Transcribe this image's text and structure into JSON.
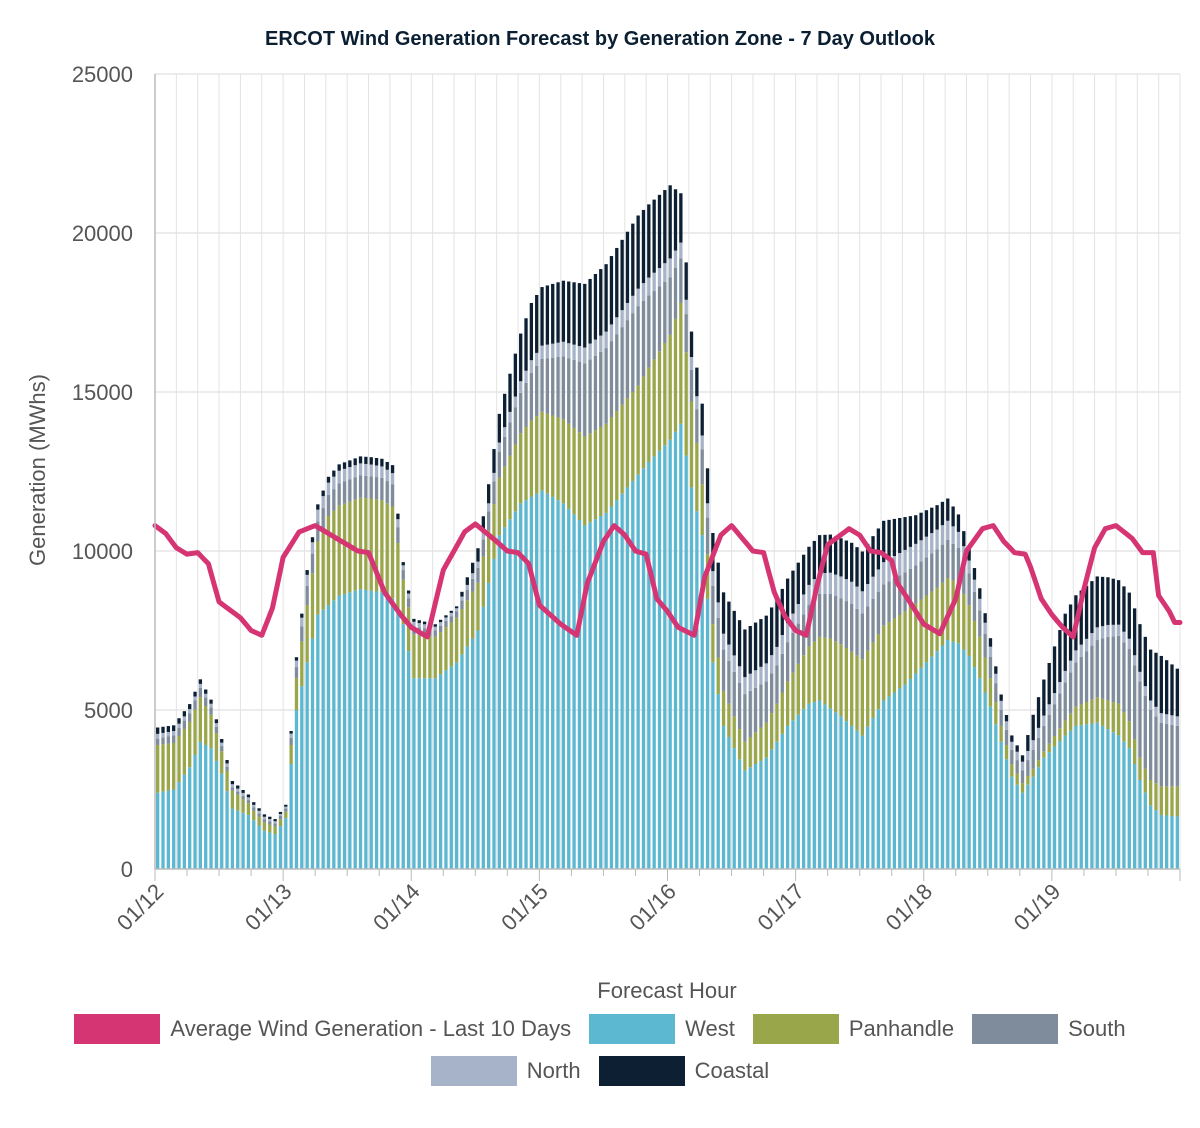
{
  "chart_data": {
    "type": "bar",
    "stacked": true,
    "title": "ERCOT Wind Generation Forecast by Generation Zone - 7 Day Outlook",
    "xlabel": "Forecast Hour",
    "ylabel": "Generation (MWhs)",
    "ylim": [
      0,
      25000
    ],
    "yticks": [
      0,
      5000,
      10000,
      15000,
      20000,
      25000
    ],
    "xticks": [
      "01/12",
      "01/13",
      "01/14",
      "01/15",
      "01/16",
      "01/17",
      "01/18",
      "01/19"
    ],
    "hours": 192,
    "grid": true,
    "legend_position": "bottom",
    "series": [
      {
        "name": "West",
        "color": "#5bb8d0",
        "anchors": [
          [
            0,
            2400
          ],
          [
            3,
            2500
          ],
          [
            6,
            3200
          ],
          [
            8,
            4000
          ],
          [
            10,
            3800
          ],
          [
            12,
            3000
          ],
          [
            14,
            1900
          ],
          [
            17,
            1700
          ],
          [
            20,
            1200
          ],
          [
            22,
            1100
          ],
          [
            24,
            1600
          ],
          [
            26,
            5000
          ],
          [
            30,
            8000
          ],
          [
            34,
            8600
          ],
          [
            38,
            8800
          ],
          [
            42,
            8700
          ],
          [
            44,
            8500
          ],
          [
            46,
            7700
          ],
          [
            48,
            6000
          ],
          [
            52,
            6000
          ],
          [
            56,
            6500
          ],
          [
            60,
            7500
          ],
          [
            64,
            10500
          ],
          [
            68,
            11500
          ],
          [
            72,
            11900
          ],
          [
            76,
            11500
          ],
          [
            80,
            10800
          ],
          [
            84,
            11200
          ],
          [
            88,
            12000
          ],
          [
            92,
            12800
          ],
          [
            96,
            13500
          ],
          [
            98,
            14000
          ],
          [
            100,
            12000
          ],
          [
            102,
            10500
          ],
          [
            104,
            6500
          ],
          [
            106,
            4500
          ],
          [
            110,
            3100
          ],
          [
            114,
            3500
          ],
          [
            118,
            4500
          ],
          [
            122,
            5200
          ],
          [
            124,
            5300
          ],
          [
            128,
            4800
          ],
          [
            130,
            4500
          ],
          [
            132,
            4200
          ],
          [
            136,
            5300
          ],
          [
            140,
            5800
          ],
          [
            144,
            6500
          ],
          [
            148,
            7200
          ],
          [
            150,
            7100
          ],
          [
            152,
            6700
          ],
          [
            154,
            6000
          ],
          [
            156,
            5100
          ],
          [
            158,
            4000
          ],
          [
            160,
            2900
          ],
          [
            162,
            2400
          ],
          [
            164,
            2900
          ],
          [
            166,
            3500
          ],
          [
            170,
            4200
          ],
          [
            172,
            4500
          ],
          [
            176,
            4600
          ],
          [
            178,
            4400
          ],
          [
            180,
            4200
          ],
          [
            182,
            3800
          ],
          [
            184,
            2800
          ],
          [
            186,
            2000
          ],
          [
            188,
            1700
          ],
          [
            191,
            1650
          ]
        ]
      },
      {
        "name": "Panhandle",
        "color": "#9aa64a",
        "anchors": [
          [
            0,
            1500
          ],
          [
            8,
            1400
          ],
          [
            12,
            700
          ],
          [
            18,
            300
          ],
          [
            24,
            200
          ],
          [
            28,
            1800
          ],
          [
            32,
            2800
          ],
          [
            40,
            2900
          ],
          [
            44,
            2900
          ],
          [
            46,
            1400
          ],
          [
            52,
            1300
          ],
          [
            56,
            1400
          ],
          [
            60,
            1500
          ],
          [
            64,
            1800
          ],
          [
            70,
            2400
          ],
          [
            80,
            2800
          ],
          [
            90,
            2800
          ],
          [
            96,
            3300
          ],
          [
            98,
            3800
          ],
          [
            102,
            1600
          ],
          [
            104,
            1200
          ],
          [
            110,
            900
          ],
          [
            116,
            1200
          ],
          [
            122,
            1800
          ],
          [
            126,
            2200
          ],
          [
            132,
            2400
          ],
          [
            140,
            2300
          ],
          [
            146,
            2000
          ],
          [
            150,
            1900
          ],
          [
            154,
            1300
          ],
          [
            158,
            500
          ],
          [
            162,
            300
          ],
          [
            166,
            200
          ],
          [
            172,
            600
          ],
          [
            176,
            800
          ],
          [
            180,
            1000
          ],
          [
            184,
            700
          ],
          [
            188,
            900
          ],
          [
            191,
            950
          ]
        ]
      },
      {
        "name": "South",
        "color": "#7f8c9b",
        "anchors": [
          [
            0,
            200
          ],
          [
            8,
            300
          ],
          [
            14,
            100
          ],
          [
            24,
            100
          ],
          [
            28,
            600
          ],
          [
            34,
            700
          ],
          [
            44,
            700
          ],
          [
            46,
            300
          ],
          [
            52,
            200
          ],
          [
            56,
            200
          ],
          [
            62,
            600
          ],
          [
            70,
            1500
          ],
          [
            80,
            2300
          ],
          [
            90,
            2500
          ],
          [
            96,
            1800
          ],
          [
            100,
            1000
          ],
          [
            104,
            1200
          ],
          [
            110,
            1500
          ],
          [
            116,
            1200
          ],
          [
            122,
            1300
          ],
          [
            130,
            1500
          ],
          [
            136,
            1300
          ],
          [
            142,
            1200
          ],
          [
            148,
            1200
          ],
          [
            152,
            1000
          ],
          [
            158,
            500
          ],
          [
            162,
            400
          ],
          [
            166,
            800
          ],
          [
            172,
            1400
          ],
          [
            178,
            2000
          ],
          [
            184,
            2400
          ],
          [
            188,
            2000
          ],
          [
            191,
            1900
          ]
        ]
      },
      {
        "name": "North",
        "color": "#a6b3c8",
        "anchors": [
          [
            0,
            150
          ],
          [
            14,
            100
          ],
          [
            24,
            60
          ],
          [
            28,
            350
          ],
          [
            34,
            400
          ],
          [
            44,
            350
          ],
          [
            46,
            150
          ],
          [
            56,
            100
          ],
          [
            62,
            250
          ],
          [
            70,
            400
          ],
          [
            80,
            500
          ],
          [
            90,
            550
          ],
          [
            96,
            600
          ],
          [
            100,
            400
          ],
          [
            106,
            500
          ],
          [
            118,
            600
          ],
          [
            130,
            700
          ],
          [
            140,
            700
          ],
          [
            148,
            600
          ],
          [
            152,
            400
          ],
          [
            160,
            250
          ],
          [
            168,
            350
          ],
          [
            176,
            400
          ],
          [
            184,
            300
          ],
          [
            190,
            300
          ]
        ]
      },
      {
        "name": "Coastal",
        "color": "#0c1f33",
        "anchors": [
          [
            0,
            200
          ],
          [
            14,
            100
          ],
          [
            24,
            60
          ],
          [
            28,
            150
          ],
          [
            34,
            200
          ],
          [
            44,
            250
          ],
          [
            46,
            100
          ],
          [
            56,
            60
          ],
          [
            62,
            600
          ],
          [
            70,
            1800
          ],
          [
            80,
            2000
          ],
          [
            90,
            2300
          ],
          [
            96,
            2300
          ],
          [
            100,
            800
          ],
          [
            104,
            1200
          ],
          [
            110,
            1500
          ],
          [
            116,
            1500
          ],
          [
            122,
            1200
          ],
          [
            128,
            1200
          ],
          [
            136,
            1300
          ],
          [
            142,
            900
          ],
          [
            148,
            700
          ],
          [
            152,
            400
          ],
          [
            158,
            200
          ],
          [
            162,
            200
          ],
          [
            164,
            800
          ],
          [
            170,
            1800
          ],
          [
            176,
            1600
          ],
          [
            180,
            1400
          ],
          [
            184,
            1500
          ],
          [
            186,
            1600
          ],
          [
            188,
            1800
          ],
          [
            191,
            1500
          ]
        ]
      }
    ],
    "line": {
      "name": "Average Wind Generation - Last 10 Days",
      "color": "#d63574",
      "anchors": [
        [
          0,
          10800
        ],
        [
          2,
          10550
        ],
        [
          4,
          10100
        ],
        [
          6,
          9900
        ],
        [
          8,
          9950
        ],
        [
          10,
          9600
        ],
        [
          12,
          8400
        ],
        [
          16,
          7900
        ],
        [
          18,
          7500
        ],
        [
          20,
          7350
        ],
        [
          22,
          8200
        ],
        [
          24,
          9800
        ],
        [
          27,
          10600
        ],
        [
          30,
          10800
        ],
        [
          34,
          10400
        ],
        [
          38,
          10000
        ],
        [
          40,
          9950
        ],
        [
          43,
          8700
        ],
        [
          46,
          8000
        ],
        [
          48,
          7600
        ],
        [
          51,
          7300
        ],
        [
          54,
          9400
        ],
        [
          58,
          10600
        ],
        [
          60,
          10850
        ],
        [
          64,
          10300
        ],
        [
          66,
          10000
        ],
        [
          68,
          9950
        ],
        [
          70,
          9600
        ],
        [
          72,
          8300
        ],
        [
          74,
          8000
        ],
        [
          76,
          7700
        ],
        [
          79,
          7350
        ],
        [
          81,
          9000
        ],
        [
          84,
          10300
        ],
        [
          86,
          10800
        ],
        [
          88,
          10500
        ],
        [
          90,
          10000
        ],
        [
          92,
          9900
        ],
        [
          94,
          8500
        ],
        [
          96,
          8100
        ],
        [
          98,
          7600
        ],
        [
          101,
          7350
        ],
        [
          103,
          9200
        ],
        [
          106,
          10500
        ],
        [
          108,
          10800
        ],
        [
          110,
          10400
        ],
        [
          112,
          10000
        ],
        [
          114,
          9950
        ],
        [
          116,
          8700
        ],
        [
          118,
          7950
        ],
        [
          120,
          7500
        ],
        [
          122,
          7350
        ],
        [
          124,
          8900
        ],
        [
          126,
          10200
        ],
        [
          130,
          10700
        ],
        [
          132,
          10500
        ],
        [
          134,
          10000
        ],
        [
          136,
          9950
        ],
        [
          138,
          9700
        ],
        [
          139,
          9000
        ],
        [
          141,
          8500
        ],
        [
          144,
          7700
        ],
        [
          147,
          7400
        ],
        [
          150,
          8500
        ],
        [
          152,
          10000
        ],
        [
          155,
          10700
        ],
        [
          157,
          10800
        ],
        [
          159,
          10300
        ],
        [
          161,
          9950
        ],
        [
          163,
          9900
        ],
        [
          164,
          9500
        ],
        [
          166,
          8500
        ],
        [
          168,
          8000
        ],
        [
          170,
          7600
        ],
        [
          172,
          7300
        ],
        [
          174,
          8800
        ],
        [
          176,
          10100
        ],
        [
          178,
          10700
        ],
        [
          180,
          10800
        ],
        [
          183,
          10400
        ],
        [
          185,
          9950
        ],
        [
          187,
          9950
        ],
        [
          188,
          8600
        ],
        [
          190,
          8100
        ],
        [
          191,
          7750
        ]
      ]
    }
  }
}
